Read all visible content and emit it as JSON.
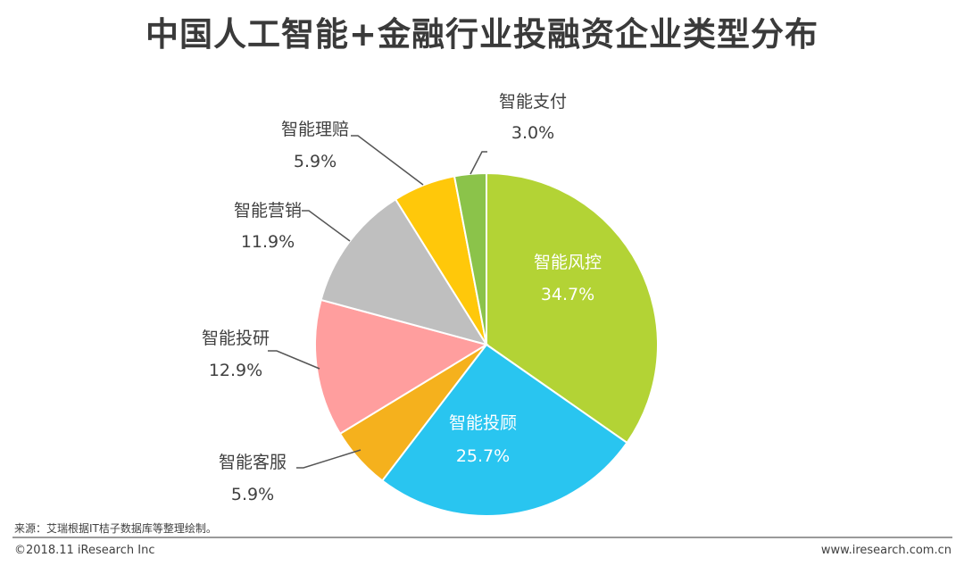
{
  "title": "中国人工智能+金融行业投融资企业类型分布",
  "chart_data": {
    "type": "pie",
    "categories": [
      "智能风控",
      "智能投顾",
      "智能客服",
      "智能投研",
      "智能营销",
      "智能理赔",
      "智能支付"
    ],
    "values": [
      34.7,
      25.7,
      5.9,
      12.9,
      11.9,
      5.9,
      3.0
    ],
    "labels": [
      "34.7%",
      "25.7%",
      "5.9%",
      "12.9%",
      "11.9%",
      "5.9%",
      "3.0%"
    ],
    "colors": [
      "#b3d335",
      "#29c5f0",
      "#f5b11d",
      "#ff9e9e",
      "#bfbfbf",
      "#ffc80a",
      "#8bc34a"
    ]
  },
  "source": "来源：艾瑞根据IT桔子数据库等整理绘制。",
  "footer": {
    "copyright": "©2018.11 iResearch Inc",
    "website": "www.iresearch.com.cn"
  }
}
